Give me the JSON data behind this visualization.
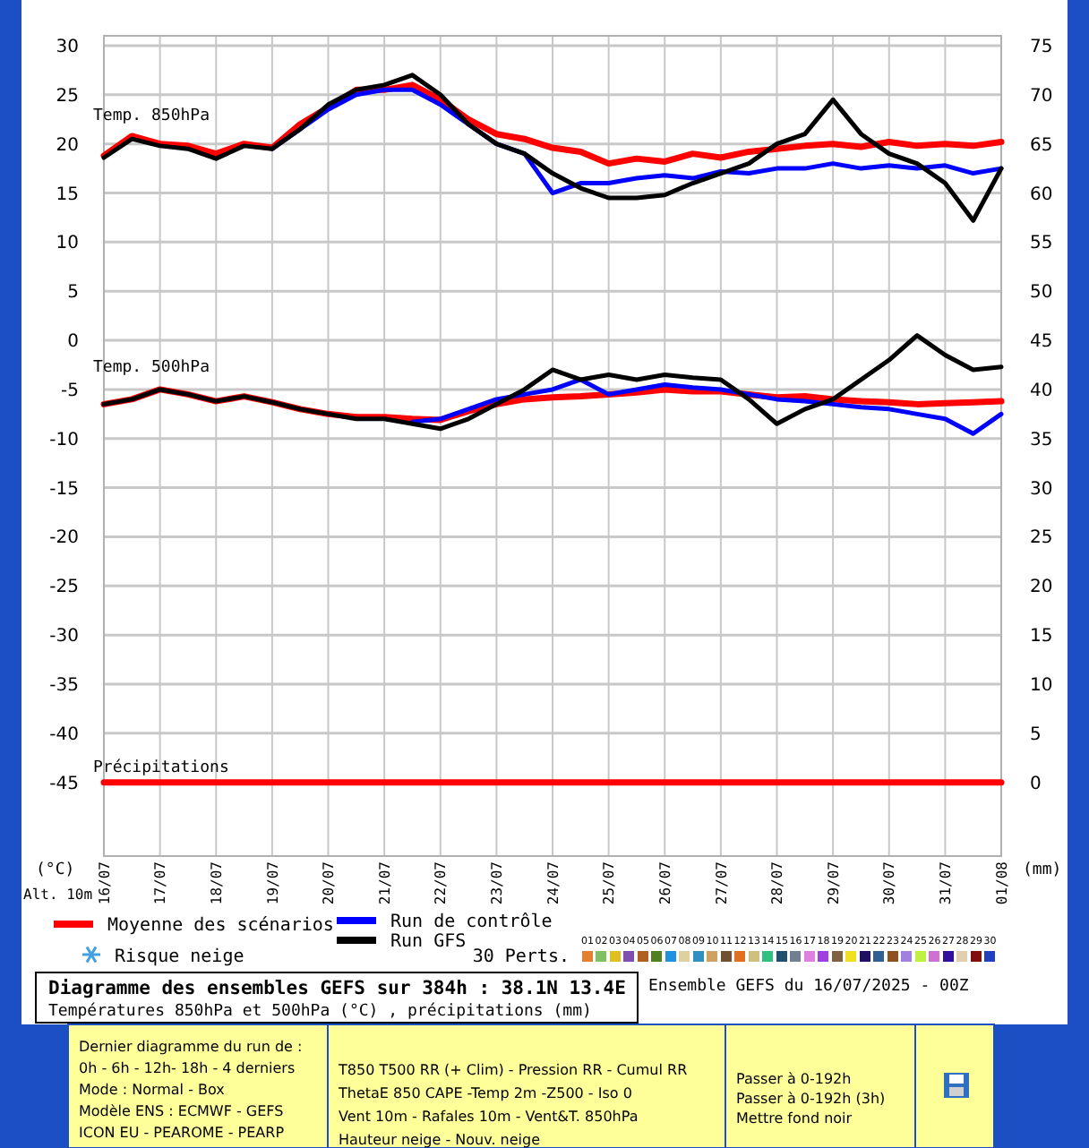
{
  "chart_data": {
    "type": "line",
    "title": "Diagramme des ensembles GEFS sur 384h : 38.1N 13.4E",
    "subtitle": "Températures 850hPa et 500hPa (°C) , précipitations (mm)",
    "ylabel": "(°C)",
    "y2label": "(mm)",
    "x": [
      "2025-07-16T00:00",
      "2025-07-16T12:00",
      "2025-07-17T00:00",
      "2025-07-17T12:00",
      "2025-07-18T00:00",
      "2025-07-18T12:00",
      "2025-07-19T00:00",
      "2025-07-19T12:00",
      "2025-07-20T00:00",
      "2025-07-20T12:00",
      "2025-07-21T00:00",
      "2025-07-21T12:00",
      "2025-07-22T00:00",
      "2025-07-22T12:00",
      "2025-07-23T00:00",
      "2025-07-23T12:00",
      "2025-07-24T00:00",
      "2025-07-24T12:00",
      "2025-07-25T00:00",
      "2025-07-25T12:00",
      "2025-07-26T00:00",
      "2025-07-26T12:00",
      "2025-07-27T00:00",
      "2025-07-27T12:00",
      "2025-07-28T00:00",
      "2025-07-28T12:00",
      "2025-07-29T00:00",
      "2025-07-29T12:00",
      "2025-07-30T00:00",
      "2025-07-30T12:00",
      "2025-07-31T00:00",
      "2025-07-31T12:00",
      "2025-08-01T00:00"
    ],
    "xlim": [
      "2025-07-16",
      "2025-08-01"
    ],
    "xticks": [
      {
        "value": "2025-07-16",
        "label": "16/07"
      },
      {
        "value": "2025-07-17",
        "label": "17/07"
      },
      {
        "value": "2025-07-18",
        "label": "18/07"
      },
      {
        "value": "2025-07-19",
        "label": "19/07"
      },
      {
        "value": "2025-07-20",
        "label": "20/07"
      },
      {
        "value": "2025-07-21",
        "label": "21/07"
      },
      {
        "value": "2025-07-22",
        "label": "22/07"
      },
      {
        "value": "2025-07-23",
        "label": "23/07"
      },
      {
        "value": "2025-07-24",
        "label": "24/07"
      },
      {
        "value": "2025-07-25",
        "label": "25/07"
      },
      {
        "value": "2025-07-26",
        "label": "26/07"
      },
      {
        "value": "2025-07-27",
        "label": "27/07"
      },
      {
        "value": "2025-07-28",
        "label": "28/07"
      },
      {
        "value": "2025-07-29",
        "label": "29/07"
      },
      {
        "value": "2025-07-30",
        "label": "30/07"
      },
      {
        "value": "2025-07-31",
        "label": "31/07"
      },
      {
        "value": "2025-08-01",
        "label": "01/08"
      }
    ],
    "ylim": [
      -52.5,
      31
    ],
    "yticks": [
      30,
      25,
      20,
      15,
      10,
      5,
      0,
      -5,
      -10,
      -15,
      -20,
      -25,
      -30,
      -35,
      -40,
      -45
    ],
    "y2lim": [
      -7.5,
      76
    ],
    "y2ticks": [
      0,
      5,
      10,
      15,
      20,
      25,
      30,
      35,
      40,
      45,
      50,
      55,
      60,
      65,
      70,
      75
    ],
    "grid": true,
    "legend": "bottom",
    "series": [
      {
        "name": "Moyenne des scénarios",
        "color": "#ff0000",
        "values": [
          18.8,
          20.8,
          20,
          19.8,
          19,
          20,
          19.6,
          22,
          23.7,
          25.5,
          25.5,
          26,
          24.5,
          22.5,
          21,
          20.5,
          19.6,
          19.2,
          18,
          18.5,
          18.2,
          19,
          18.6,
          19.2,
          19.5,
          19.8,
          20,
          19.7,
          20.2,
          19.8,
          20,
          19.8,
          20.2
        ]
      },
      {
        "name": "Run de contrôle",
        "color": "#0000ff",
        "values": [
          null,
          null,
          null,
          null,
          null,
          null,
          19.5,
          21.5,
          23.5,
          25,
          25.5,
          25.5,
          24,
          22,
          20,
          19,
          15,
          16,
          16,
          16.5,
          16.8,
          16.5,
          17.2,
          17,
          17.5,
          17.5,
          18,
          17.5,
          17.8,
          17.5,
          17.8,
          17,
          17.5
        ]
      },
      {
        "name": "Run GFS",
        "color": "#000000",
        "values": [
          18.6,
          20.5,
          19.8,
          19.5,
          18.5,
          19.8,
          19.5,
          21.5,
          24,
          25.5,
          26,
          27,
          25,
          22,
          20,
          19,
          17,
          15.5,
          14.5,
          14.5,
          14.8,
          16,
          17,
          18,
          20,
          21,
          24.5,
          21,
          19,
          18,
          16,
          12.2,
          17.5
        ]
      },
      {
        "color": "#ff0000",
        "values": [
          -6.5,
          -6,
          -5,
          -5.5,
          -6.2,
          -5.7,
          -6.3,
          -7,
          -7.5,
          -7.8,
          -7.8,
          -8,
          -8.1,
          -7.2,
          -6.5,
          -6,
          -5.8,
          -5.7,
          -5.5,
          -5.3,
          -5,
          -5.2,
          -5.2,
          -5.5,
          -5.8,
          -5.7,
          -6,
          -6.2,
          -6.3,
          -6.5,
          -6.4,
          -6.3,
          -6.2
        ]
      },
      {
        "color": "#0000ff",
        "values": [
          null,
          null,
          null,
          null,
          null,
          null,
          null,
          null,
          null,
          null,
          null,
          -8.3,
          -8,
          -7,
          -6,
          -5.5,
          -5,
          -4,
          -5.5,
          -5,
          -4.5,
          -4.8,
          -5,
          -5.5,
          -6,
          -6.2,
          -6.5,
          -6.8,
          -7,
          -7.5,
          -8,
          -9.5,
          -7.5
        ]
      },
      {
        "color": "#000000",
        "values": [
          -6.5,
          -6,
          -5,
          -5.5,
          -6.2,
          -5.7,
          -6.3,
          -7,
          -7.5,
          -8,
          -8,
          -8.5,
          -9,
          -8,
          -6.5,
          -5,
          -3,
          -4,
          -3.5,
          -4,
          -3.5,
          -3.8,
          -4,
          -6,
          -8.5,
          -7,
          -6,
          -4,
          -2,
          0.5,
          -1.5,
          -3,
          -2.7
        ]
      },
      {
        "color": "#ff0000",
        "axis": "y2",
        "values": [
          0,
          0,
          0,
          0,
          0,
          0,
          0,
          0,
          0,
          0,
          0,
          0,
          0,
          0,
          0,
          0,
          0,
          0,
          0,
          0,
          0,
          0,
          0,
          0,
          0,
          0,
          0,
          0,
          0,
          0,
          0,
          0,
          0
        ]
      }
    ],
    "annotations": [
      "Temp. 850hPa",
      "Temp. 500hPa",
      "Précipitations",
      "Alt. 10m",
      "Risque neige",
      "30 Perts.",
      "Ensemble GEFS du 16/07/2025 - 00Z",
      "Dernier diagramme du run de :",
      "0h - 6h - 12h- 18h - 4 derniers",
      "Mode : Normal - Box",
      "Modèle ENS : ECMWF - GEFS",
      "ICON EU - PEAROME - PEARP",
      "T850 T500 RR (+ Clim) - Pression RR - Cumul RR",
      "ThetaE 850 CAPE -Temp 2m -Z500 - Iso 0",
      "Vent 10m - Rafales 10m - Vent&T. 850hPa",
      "Hauteur neige - Nouv. neige",
      "Passer à 0-192h",
      "Passer à 0-192h (3h)",
      "Mettre fond noir",
      "01",
      "02",
      "03",
      "04",
      "05",
      "06",
      "07",
      "08",
      "09",
      "10",
      "11",
      "12",
      "13",
      "14",
      "15",
      "16",
      "17",
      "18",
      "19",
      "20",
      "21",
      "22",
      "23",
      "24",
      "25",
      "26",
      "27",
      "28",
      "29",
      "30"
    ]
  }
}
